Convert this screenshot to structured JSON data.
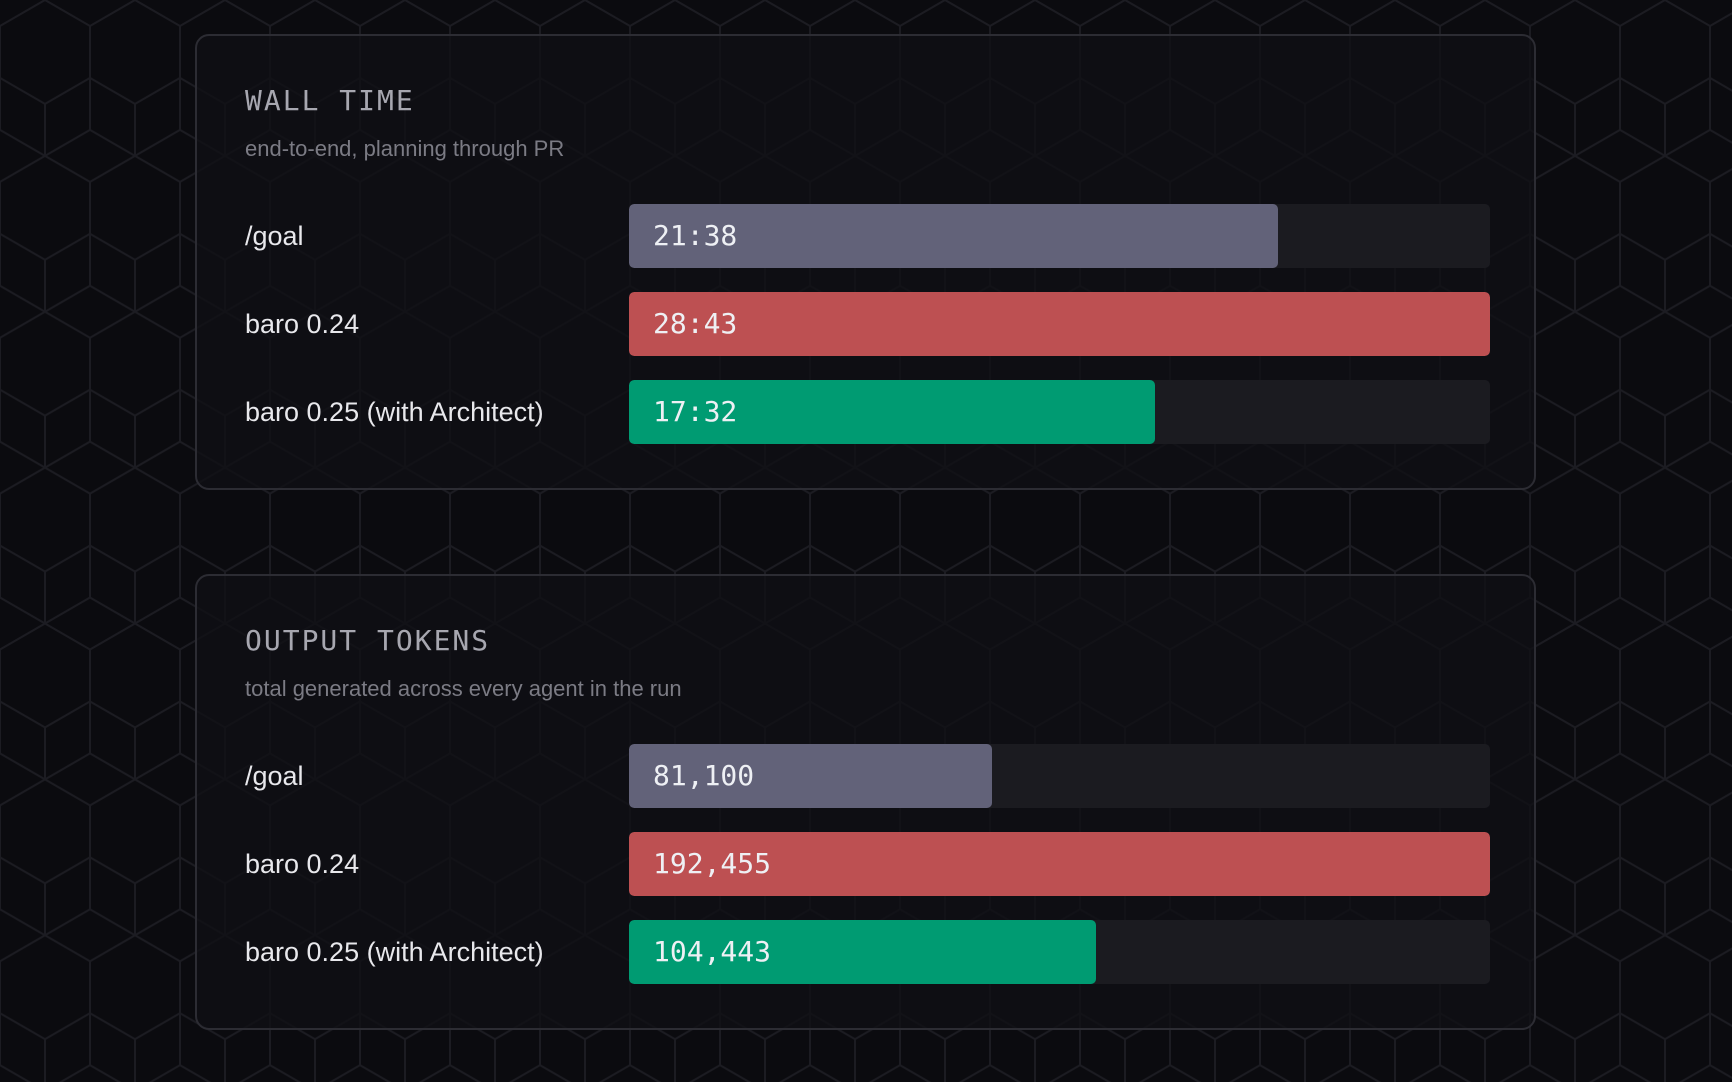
{
  "chart_data": [
    {
      "type": "bar",
      "orientation": "horizontal",
      "title": "WALL TIME",
      "subtitle": "end-to-end, planning through PR",
      "unit": "mm:ss",
      "categories": [
        "/goal",
        "baro 0.24",
        "baro 0.25 (with Architect)"
      ],
      "values": [
        1298,
        1723,
        1052
      ],
      "value_labels": [
        "21:38",
        "28:43",
        "17:32"
      ],
      "colors": [
        "#626279",
        "#bd5052",
        "#009b72"
      ],
      "max": 1723
    },
    {
      "type": "bar",
      "orientation": "horizontal",
      "title": "OUTPUT TOKENS",
      "subtitle": "total generated across every agent in the run",
      "categories": [
        "/goal",
        "baro 0.24",
        "baro 0.25 (with Architect)"
      ],
      "values": [
        81100,
        192455,
        104443
      ],
      "value_labels": [
        "81,100",
        "192,455",
        "104,443"
      ],
      "colors": [
        "#626279",
        "#bd5052",
        "#009b72"
      ],
      "max": 192455
    }
  ]
}
